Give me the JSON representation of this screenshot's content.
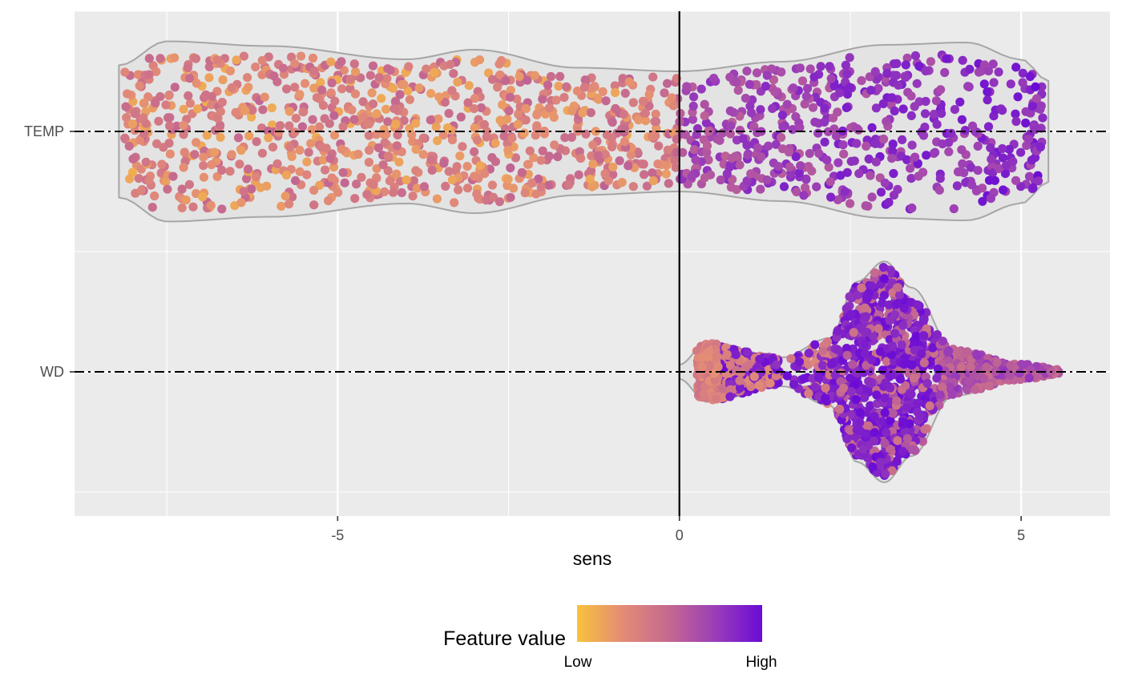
{
  "chart_data": {
    "type": "scatter",
    "subtype": "beeswarm-violin",
    "title": "",
    "xlabel": "sens",
    "ylabel": "",
    "xlim": [
      -8.85,
      6.3
    ],
    "x_ticks": [
      -5,
      0,
      5
    ],
    "x_tick_labels": [
      "-5",
      "0",
      "5"
    ],
    "categories": [
      "TEMP",
      "WD"
    ],
    "grid": true,
    "reference_line_x": 0,
    "legend": {
      "title": "Feature value",
      "position": "bottom",
      "low_label": "Low",
      "high_label": "High",
      "colors": [
        "#f8c23c",
        "#e38b77",
        "#c46890",
        "#9a3db8",
        "#6a0bd6"
      ]
    },
    "series": [
      {
        "name": "TEMP",
        "x_range": [
          -8.2,
          5.4
        ],
        "violin_profile": [
          {
            "x": -8.2,
            "half_width": 0.55
          },
          {
            "x": -7.5,
            "half_width": 0.75
          },
          {
            "x": -6.0,
            "half_width": 0.71
          },
          {
            "x": -4.0,
            "half_width": 0.6
          },
          {
            "x": -3.0,
            "half_width": 0.68
          },
          {
            "x": -1.5,
            "half_width": 0.53
          },
          {
            "x": 0.0,
            "half_width": 0.5
          },
          {
            "x": 1.5,
            "half_width": 0.58
          },
          {
            "x": 3.0,
            "half_width": 0.72
          },
          {
            "x": 4.2,
            "half_width": 0.74
          },
          {
            "x": 5.0,
            "half_width": 0.6
          },
          {
            "x": 5.4,
            "half_width": 0.42
          }
        ],
        "color_trend": "low feature values at negative sens, high feature values at positive sens"
      },
      {
        "name": "WD",
        "x_range": [
          0.0,
          5.6
        ],
        "violin_profile": [
          {
            "x": 0.0,
            "half_width": 0.06
          },
          {
            "x": 0.4,
            "half_width": 0.25
          },
          {
            "x": 1.5,
            "half_width": 0.12
          },
          {
            "x": 2.2,
            "half_width": 0.28
          },
          {
            "x": 2.6,
            "half_width": 0.75
          },
          {
            "x": 3.0,
            "half_width": 0.92
          },
          {
            "x": 3.4,
            "half_width": 0.7
          },
          {
            "x": 4.0,
            "half_width": 0.2
          },
          {
            "x": 5.0,
            "half_width": 0.07
          },
          {
            "x": 5.6,
            "half_width": 0.02
          }
        ],
        "color_trend": "high feature values concentrated near sens 2.5-3.5, low feature values near 0.3-1"
      }
    ]
  }
}
